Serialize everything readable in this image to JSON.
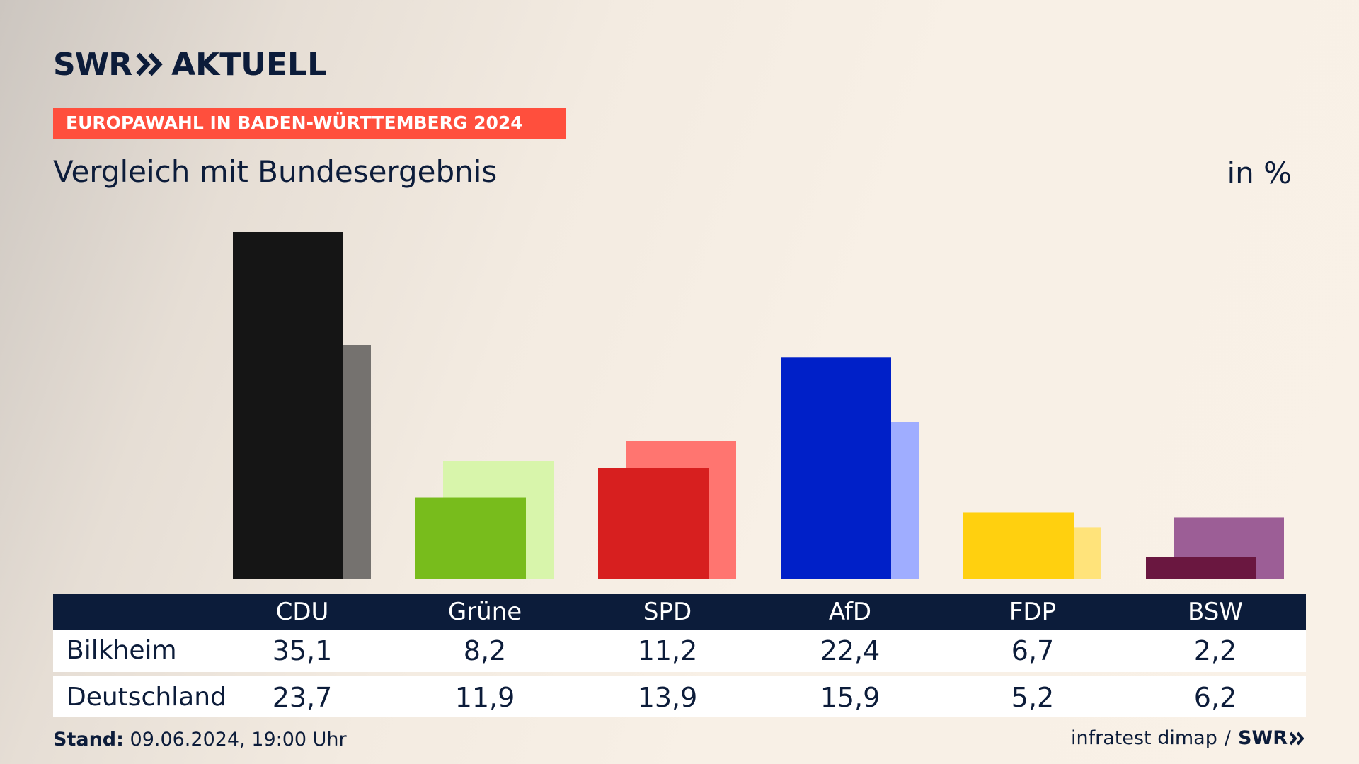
{
  "header": {
    "logo_text_left": "SWR",
    "logo_text_right": "AKTUELL",
    "banner": "EUROPAWAHL IN BADEN-WÜRTTEMBERG 2024",
    "subtitle": "Vergleich mit Bundesergebnis",
    "unit": "in %"
  },
  "colors": {
    "banner": "#ff4f3d",
    "navy": "#0c1c3a"
  },
  "table": {
    "row_labels": [
      "Bilkheim",
      "Deutschland"
    ]
  },
  "chart_data": {
    "type": "bar",
    "title": "Vergleich mit Bundesergebnis",
    "ylabel": "in %",
    "categories": [
      "CDU",
      "Grüne",
      "SPD",
      "AfD",
      "FDP",
      "BSW"
    ],
    "series": [
      {
        "name": "Bilkheim",
        "values": [
          35.1,
          8.2,
          11.2,
          22.4,
          6.7,
          2.2
        ],
        "labels": [
          "35,1",
          "8,2",
          "11,2",
          "22,4",
          "6,7",
          "2,2"
        ],
        "colors": [
          "#151515",
          "#78bc1c",
          "#d71f1f",
          "#0020c8",
          "#ffd00f",
          "#6a1740"
        ]
      },
      {
        "name": "Deutschland",
        "values": [
          23.7,
          11.9,
          13.9,
          15.9,
          5.2,
          6.2
        ],
        "labels": [
          "23,7",
          "11,9",
          "13,9",
          "15,9",
          "5,2",
          "6,2"
        ],
        "colors": [
          "#75726f",
          "#d8f5ab",
          "#ff7570",
          "#9fadff",
          "#ffe37a",
          "#9c5e96"
        ]
      }
    ],
    "ylim": [
      0,
      35.1
    ]
  },
  "footer": {
    "stand_label": "Stand:",
    "stand_value": "09.06.2024, 19:00 Uhr",
    "source": "infratest dimap",
    "separator": "/",
    "source_logo": "SWR"
  }
}
